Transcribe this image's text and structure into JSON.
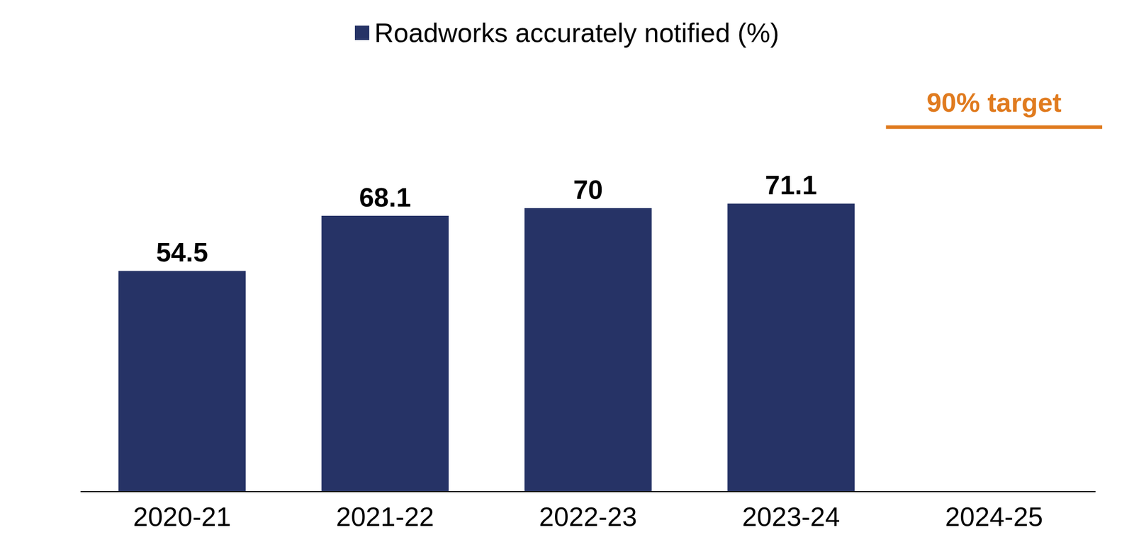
{
  "chart_data": {
    "type": "bar",
    "legend": "top",
    "categories": [
      "2020-21",
      "2021-22",
      "2022-23",
      "2023-24",
      "2024-25"
    ],
    "series": [
      {
        "name": "Roadworks accurately notified (%)",
        "color": "#263366",
        "values": [
          54.5,
          68.1,
          70,
          71.1,
          null
        ]
      }
    ],
    "ylim": [
      0,
      100
    ],
    "data_labels": true,
    "tick_labels": "x",
    "grid": false,
    "target": {
      "value": 90,
      "label": "90% target",
      "category": "2024-25",
      "color": "#e07b1f"
    }
  }
}
